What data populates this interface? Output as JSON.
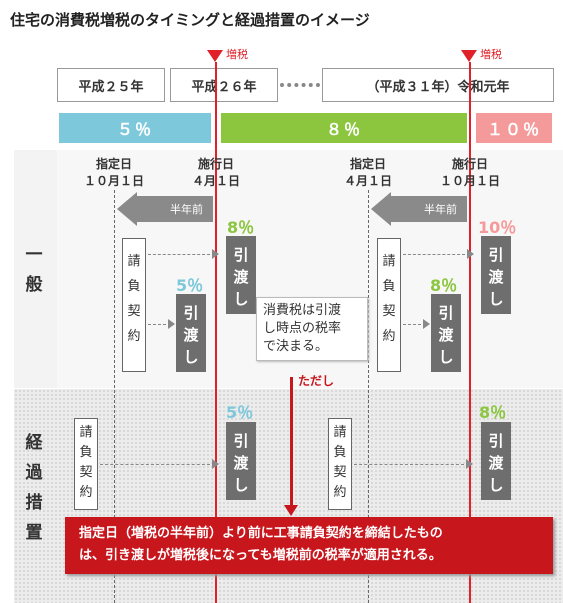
{
  "title": "住宅の消費税増税のタイミングと経過措置のイメージ",
  "eras": [
    "平成２５年",
    "平成２６年",
    "（平成３１年）令和元年"
  ],
  "hike_tag": "増税",
  "rates": [
    {
      "label": "５％",
      "color": "#7ec8dc"
    },
    {
      "label": "８％",
      "color": "#8cc63f"
    },
    {
      "label": "１０％",
      "color": "#f59a9a"
    }
  ],
  "side_labels": {
    "general": [
      "一",
      "般"
    ],
    "transition": [
      "経",
      "過",
      "措",
      "置"
    ]
  },
  "dates": {
    "designated1": {
      "head": "指定日",
      "date": "１０月１日"
    },
    "effective1": {
      "head": "施行日",
      "date": "４月１日"
    },
    "designated2": {
      "head": "指定日",
      "date": "４月１日"
    },
    "effective2": {
      "head": "施行日",
      "date": "１０月１日"
    }
  },
  "half_year_before": "半年前",
  "contract_chars": [
    "請",
    "負",
    "契",
    "約"
  ],
  "handover_chars": [
    "引",
    "渡",
    "し"
  ],
  "pcts": {
    "p8": "8％",
    "p10": "10％",
    "p5": "5％"
  },
  "callout_lines": [
    "消費税は引渡",
    "し時点の税率",
    "で決まる。"
  ],
  "however": "ただし",
  "notice_lines": [
    "指定日（増税の半年前）より前に工事請負契約を締結したもの",
    "は、引き渡しが増税後になっても増税前の税率が適用される。"
  ],
  "colors": {
    "red": "#e0212a",
    "green": "#8cc63f",
    "blue": "#7ec8dc",
    "pink": "#f59a9a",
    "notice": "#c8161d"
  }
}
